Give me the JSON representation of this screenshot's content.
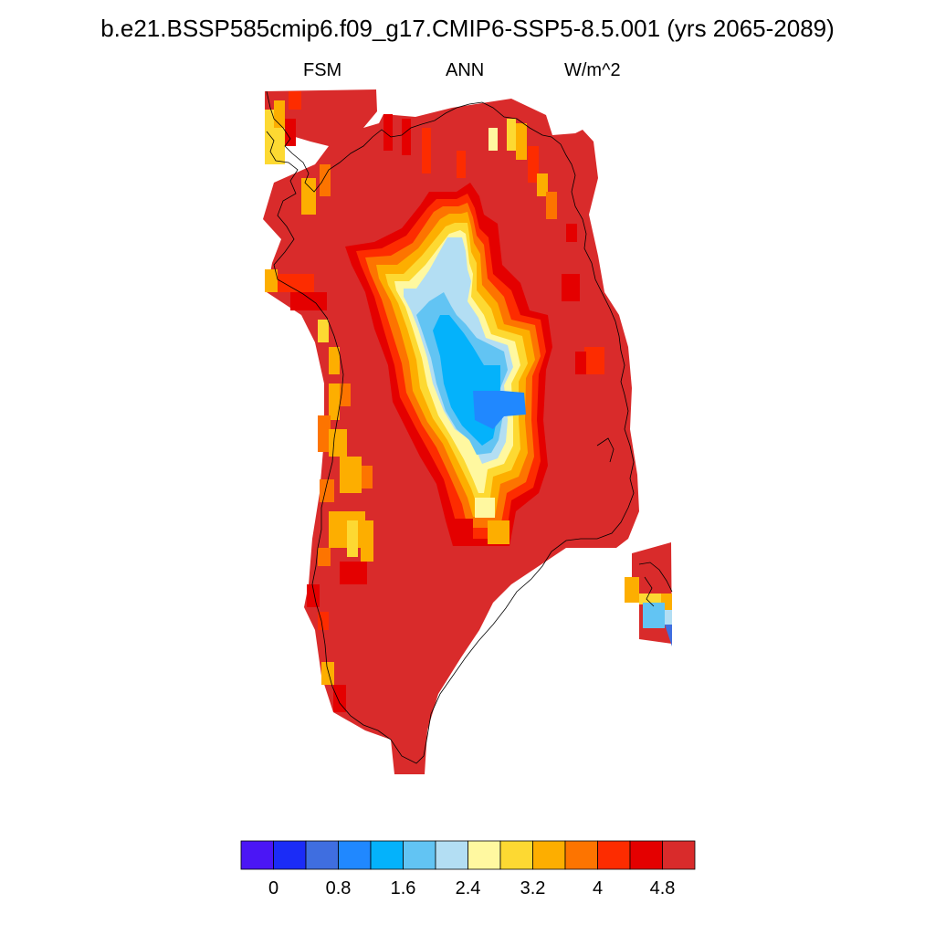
{
  "title": "b.e21.BSSP585cmip6.f09_g17.CMIP6-SSP5-8.5.001 (yrs 2065-2089)",
  "subtitle": {
    "left": "FSM",
    "center": "ANN",
    "right": "W/m^2"
  },
  "colorbar": {
    "colors": [
      "#4b16f5",
      "#1b2cf7",
      "#3f6ee0",
      "#2088ff",
      "#04b2fb",
      "#62c4f3",
      "#b3def3",
      "#fff8a0",
      "#fdd932",
      "#fdae00",
      "#fd7400",
      "#fd2c00",
      "#e40000",
      "#d92b2b"
    ],
    "tick_labels": [
      "0",
      "0.8",
      "1.6",
      "2.4",
      "3.2",
      "4",
      "4.8"
    ],
    "tick_values": [
      0,
      0.8,
      1.6,
      2.4,
      3.2,
      4.0,
      4.8
    ],
    "level_step": 0.4,
    "range": [
      -0.4,
      5.2
    ]
  },
  "map_data": {
    "variable": "FSM",
    "season": "ANN",
    "units": "W/m^2",
    "region": "Greenland",
    "field_summary": {
      "background_class_index": 13,
      "interior_min_value": 1.2,
      "interior_class_pattern": "low values (1.2-2.4) in central-east interior, rising through 2.4-4.8 rings to >4.8 toward the margins",
      "margin_values": "mostly >4.8 with scattered 3.2-4.8 patches along west and north coasts"
    }
  }
}
